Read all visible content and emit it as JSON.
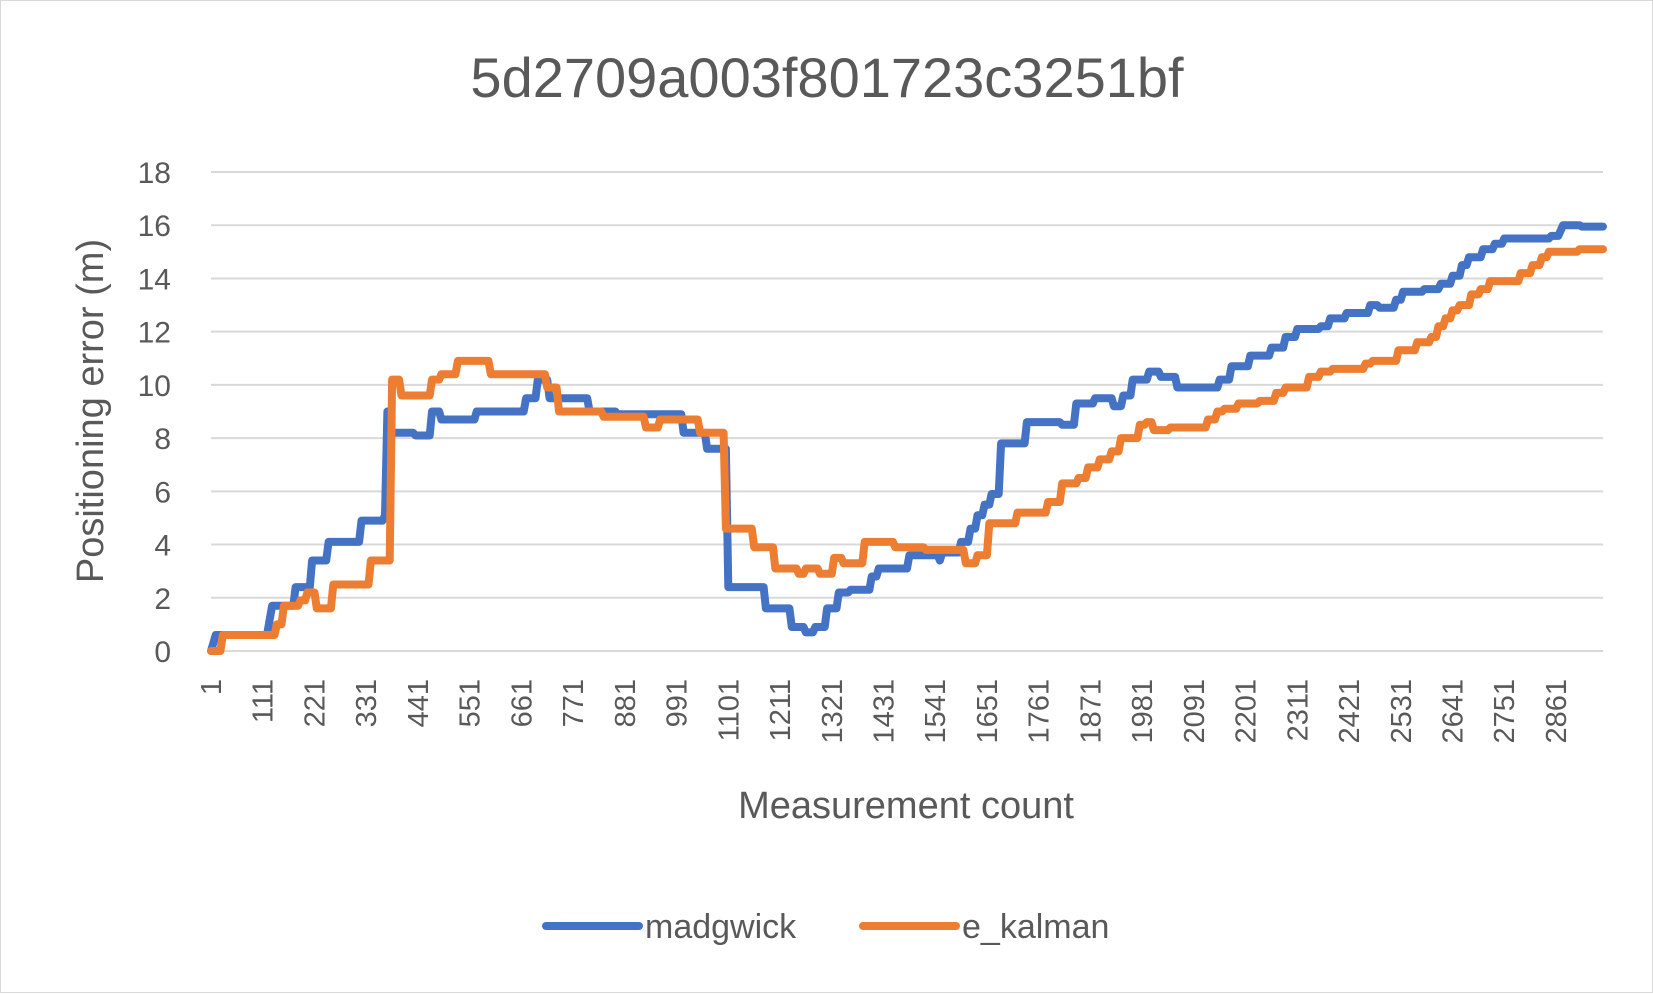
{
  "chart_data": {
    "type": "line",
    "title": "5d2709a003f801723c3251bf",
    "xlabel": "Measurement count",
    "ylabel": "Positioning error (m)",
    "ylim": [
      0,
      18
    ],
    "yticks": [
      0,
      2,
      4,
      6,
      8,
      10,
      12,
      14,
      16,
      18
    ],
    "xlim": [
      1,
      2961
    ],
    "xticks": [
      1,
      111,
      221,
      331,
      441,
      551,
      661,
      771,
      881,
      991,
      1101,
      1211,
      1321,
      1431,
      1541,
      1651,
      1761,
      1871,
      1981,
      2091,
      2201,
      2311,
      2421,
      2531,
      2641,
      2751,
      2861
    ],
    "grid": true,
    "legend_position": "bottom",
    "series": [
      {
        "name": "madgwick",
        "color": "#4472c4",
        "points": [
          [
            1,
            0
          ],
          [
            11,
            0.6
          ],
          [
            120,
            0.6
          ],
          [
            125,
            1.1
          ],
          [
            131,
            1.7
          ],
          [
            176,
            1.7
          ],
          [
            181,
            2.4
          ],
          [
            211,
            2.4
          ],
          [
            216,
            3.4
          ],
          [
            246,
            3.4
          ],
          [
            251,
            4.1
          ],
          [
            316,
            4.1
          ],
          [
            321,
            4.9
          ],
          [
            366,
            4.9
          ],
          [
            371,
            5.1
          ],
          [
            376,
            9.0
          ],
          [
            381,
            8.2
          ],
          [
            431,
            8.2
          ],
          [
            436,
            8.1
          ],
          [
            466,
            8.1
          ],
          [
            471,
            9.0
          ],
          [
            486,
            9.0
          ],
          [
            491,
            8.7
          ],
          [
            561,
            8.7
          ],
          [
            566,
            9.0
          ],
          [
            666,
            9.0
          ],
          [
            671,
            9.5
          ],
          [
            691,
            9.5
          ],
          [
            696,
            10.2
          ],
          [
            716,
            10.2
          ],
          [
            721,
            9.5
          ],
          [
            801,
            9.5
          ],
          [
            806,
            9.0
          ],
          [
            861,
            9.0
          ],
          [
            866,
            8.9
          ],
          [
            961,
            8.9
          ],
          [
            966,
            8.9
          ],
          [
            1001,
            8.9
          ],
          [
            1006,
            8.2
          ],
          [
            1051,
            8.2
          ],
          [
            1056,
            7.6
          ],
          [
            1096,
            7.6
          ],
          [
            1101,
            2.4
          ],
          [
            1176,
            2.4
          ],
          [
            1181,
            1.6
          ],
          [
            1231,
            1.6
          ],
          [
            1236,
            0.9
          ],
          [
            1261,
            0.9
          ],
          [
            1266,
            0.7
          ],
          [
            1281,
            0.7
          ],
          [
            1286,
            0.9
          ],
          [
            1306,
            0.9
          ],
          [
            1311,
            1.6
          ],
          [
            1331,
            1.6
          ],
          [
            1336,
            2.2
          ],
          [
            1356,
            2.2
          ],
          [
            1361,
            2.3
          ],
          [
            1401,
            2.3
          ],
          [
            1406,
            2.8
          ],
          [
            1416,
            2.8
          ],
          [
            1421,
            3.1
          ],
          [
            1481,
            3.1
          ],
          [
            1486,
            3.6
          ],
          [
            1546,
            3.6
          ],
          [
            1551,
            3.4
          ],
          [
            1556,
            3.7
          ],
          [
            1591,
            3.7
          ],
          [
            1596,
            4.1
          ],
          [
            1611,
            4.1
          ],
          [
            1616,
            4.6
          ],
          [
            1626,
            4.6
          ],
          [
            1631,
            5.1
          ],
          [
            1641,
            5.1
          ],
          [
            1646,
            5.5
          ],
          [
            1656,
            5.5
          ],
          [
            1661,
            5.9
          ],
          [
            1676,
            5.9
          ],
          [
            1681,
            7.8
          ],
          [
            1731,
            7.8
          ],
          [
            1736,
            8.6
          ],
          [
            1806,
            8.6
          ],
          [
            1811,
            8.5
          ],
          [
            1836,
            8.5
          ],
          [
            1841,
            9.3
          ],
          [
            1876,
            9.3
          ],
          [
            1881,
            9.5
          ],
          [
            1916,
            9.5
          ],
          [
            1921,
            9.2
          ],
          [
            1936,
            9.2
          ],
          [
            1941,
            9.6
          ],
          [
            1956,
            9.6
          ],
          [
            1961,
            10.2
          ],
          [
            1991,
            10.2
          ],
          [
            1996,
            10.5
          ],
          [
            2016,
            10.5
          ],
          [
            2021,
            10.3
          ],
          [
            2051,
            10.3
          ],
          [
            2056,
            9.9
          ],
          [
            2141,
            9.9
          ],
          [
            2146,
            10.2
          ],
          [
            2166,
            10.2
          ],
          [
            2171,
            10.7
          ],
          [
            2206,
            10.7
          ],
          [
            2211,
            11.1
          ],
          [
            2251,
            11.1
          ],
          [
            2256,
            11.4
          ],
          [
            2281,
            11.4
          ],
          [
            2286,
            11.8
          ],
          [
            2306,
            11.8
          ],
          [
            2311,
            12.1
          ],
          [
            2356,
            12.1
          ],
          [
            2361,
            12.2
          ],
          [
            2376,
            12.2
          ],
          [
            2381,
            12.5
          ],
          [
            2411,
            12.5
          ],
          [
            2416,
            12.7
          ],
          [
            2461,
            12.7
          ],
          [
            2466,
            13.0
          ],
          [
            2481,
            13.0
          ],
          [
            2486,
            12.9
          ],
          [
            2516,
            12.9
          ],
          [
            2521,
            13.2
          ],
          [
            2531,
            13.2
          ],
          [
            2536,
            13.5
          ],
          [
            2576,
            13.5
          ],
          [
            2581,
            13.6
          ],
          [
            2611,
            13.6
          ],
          [
            2616,
            13.8
          ],
          [
            2636,
            13.8
          ],
          [
            2641,
            14.1
          ],
          [
            2656,
            14.1
          ],
          [
            2661,
            14.5
          ],
          [
            2671,
            14.5
          ],
          [
            2676,
            14.8
          ],
          [
            2701,
            14.8
          ],
          [
            2706,
            15.1
          ],
          [
            2726,
            15.1
          ],
          [
            2731,
            15.3
          ],
          [
            2746,
            15.3
          ],
          [
            2751,
            15.5
          ],
          [
            2846,
            15.5
          ],
          [
            2851,
            15.6
          ],
          [
            2866,
            15.6
          ],
          [
            2871,
            15.8
          ],
          [
            2876,
            16.0
          ],
          [
            2911,
            16.0
          ],
          [
            2916,
            15.95
          ],
          [
            2961,
            15.95
          ]
        ]
      },
      {
        "name": "e_kalman",
        "color": "#ed7d31",
        "points": [
          [
            1,
            0
          ],
          [
            21,
            0
          ],
          [
            26,
            0.6
          ],
          [
            136,
            0.6
          ],
          [
            141,
            1.0
          ],
          [
            151,
            1.0
          ],
          [
            156,
            1.7
          ],
          [
            186,
            1.7
          ],
          [
            191,
            1.9
          ],
          [
            201,
            1.9
          ],
          [
            206,
            2.2
          ],
          [
            221,
            2.2
          ],
          [
            226,
            1.6
          ],
          [
            256,
            1.6
          ],
          [
            261,
            2.5
          ],
          [
            336,
            2.5
          ],
          [
            341,
            3.4
          ],
          [
            381,
            3.4
          ],
          [
            386,
            10.2
          ],
          [
            401,
            10.2
          ],
          [
            406,
            9.6
          ],
          [
            466,
            9.6
          ],
          [
            471,
            10.2
          ],
          [
            486,
            10.2
          ],
          [
            491,
            10.4
          ],
          [
            521,
            10.4
          ],
          [
            526,
            10.9
          ],
          [
            591,
            10.9
          ],
          [
            596,
            10.4
          ],
          [
            711,
            10.4
          ],
          [
            716,
            9.9
          ],
          [
            736,
            9.9
          ],
          [
            741,
            9.0
          ],
          [
            831,
            9.0
          ],
          [
            836,
            8.8
          ],
          [
            921,
            8.8
          ],
          [
            926,
            8.4
          ],
          [
            951,
            8.4
          ],
          [
            956,
            8.7
          ],
          [
            1036,
            8.7
          ],
          [
            1041,
            8.2
          ],
          [
            1091,
            8.2
          ],
          [
            1096,
            4.6
          ],
          [
            1151,
            4.6
          ],
          [
            1156,
            3.9
          ],
          [
            1196,
            3.9
          ],
          [
            1201,
            3.1
          ],
          [
            1246,
            3.1
          ],
          [
            1251,
            2.9
          ],
          [
            1261,
            2.9
          ],
          [
            1266,
            3.1
          ],
          [
            1291,
            3.1
          ],
          [
            1296,
            2.9
          ],
          [
            1321,
            2.9
          ],
          [
            1326,
            3.5
          ],
          [
            1341,
            3.5
          ],
          [
            1346,
            3.3
          ],
          [
            1386,
            3.3
          ],
          [
            1391,
            4.1
          ],
          [
            1451,
            4.1
          ],
          [
            1456,
            3.9
          ],
          [
            1516,
            3.9
          ],
          [
            1521,
            3.8
          ],
          [
            1601,
            3.8
          ],
          [
            1606,
            3.3
          ],
          [
            1626,
            3.3
          ],
          [
            1631,
            3.6
          ],
          [
            1651,
            3.6
          ],
          [
            1656,
            4.8
          ],
          [
            1711,
            4.8
          ],
          [
            1716,
            5.2
          ],
          [
            1776,
            5.2
          ],
          [
            1781,
            5.6
          ],
          [
            1806,
            5.6
          ],
          [
            1811,
            6.3
          ],
          [
            1841,
            6.3
          ],
          [
            1846,
            6.5
          ],
          [
            1861,
            6.5
          ],
          [
            1866,
            6.9
          ],
          [
            1886,
            6.9
          ],
          [
            1891,
            7.2
          ],
          [
            1911,
            7.2
          ],
          [
            1916,
            7.5
          ],
          [
            1931,
            7.5
          ],
          [
            1936,
            8.0
          ],
          [
            1971,
            8.0
          ],
          [
            1976,
            8.5
          ],
          [
            1986,
            8.5
          ],
          [
            1991,
            8.6
          ],
          [
            2001,
            8.6
          ],
          [
            2006,
            8.3
          ],
          [
            2036,
            8.3
          ],
          [
            2041,
            8.4
          ],
          [
            2116,
            8.4
          ],
          [
            2121,
            8.7
          ],
          [
            2136,
            8.7
          ],
          [
            2141,
            9.0
          ],
          [
            2151,
            9.0
          ],
          [
            2156,
            9.1
          ],
          [
            2181,
            9.1
          ],
          [
            2186,
            9.3
          ],
          [
            2226,
            9.3
          ],
          [
            2231,
            9.4
          ],
          [
            2261,
            9.4
          ],
          [
            2266,
            9.7
          ],
          [
            2281,
            9.7
          ],
          [
            2286,
            9.9
          ],
          [
            2331,
            9.9
          ],
          [
            2336,
            10.3
          ],
          [
            2356,
            10.3
          ],
          [
            2361,
            10.5
          ],
          [
            2381,
            10.5
          ],
          [
            2386,
            10.6
          ],
          [
            2451,
            10.6
          ],
          [
            2456,
            10.8
          ],
          [
            2466,
            10.8
          ],
          [
            2471,
            10.9
          ],
          [
            2521,
            10.9
          ],
          [
            2526,
            11.3
          ],
          [
            2561,
            11.3
          ],
          [
            2566,
            11.6
          ],
          [
            2591,
            11.6
          ],
          [
            2596,
            11.8
          ],
          [
            2606,
            11.8
          ],
          [
            2611,
            12.2
          ],
          [
            2621,
            12.2
          ],
          [
            2626,
            12.5
          ],
          [
            2636,
            12.5
          ],
          [
            2641,
            12.8
          ],
          [
            2651,
            12.8
          ],
          [
            2656,
            13.0
          ],
          [
            2676,
            13.0
          ],
          [
            2681,
            13.4
          ],
          [
            2696,
            13.4
          ],
          [
            2701,
            13.6
          ],
          [
            2716,
            13.6
          ],
          [
            2721,
            13.9
          ],
          [
            2781,
            13.9
          ],
          [
            2786,
            14.2
          ],
          [
            2806,
            14.2
          ],
          [
            2811,
            14.5
          ],
          [
            2826,
            14.5
          ],
          [
            2831,
            14.8
          ],
          [
            2841,
            14.8
          ],
          [
            2846,
            15.0
          ],
          [
            2906,
            15.0
          ],
          [
            2911,
            15.1
          ],
          [
            2961,
            15.1
          ]
        ]
      }
    ]
  }
}
